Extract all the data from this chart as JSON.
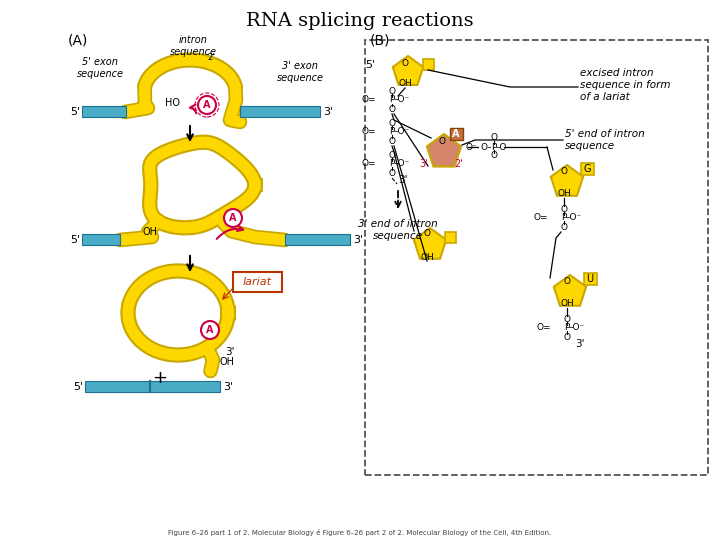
{
  "title": "RNA splicing reactions",
  "title_fontsize": 14,
  "background_color": "#ffffff",
  "yellow": "#FFD700",
  "yellow_dark": "#C8A800",
  "blue": "#4BACC6",
  "pink": "#D4856A",
  "red": "#CC0044",
  "caption": "Figure 6–26 part 1 of 2. Molecular Biology é Figure 6–26 part 2 of 2. Molecular Biology of the Cell, 4th Edition.",
  "label_A": "(A)",
  "label_B": "(B)"
}
